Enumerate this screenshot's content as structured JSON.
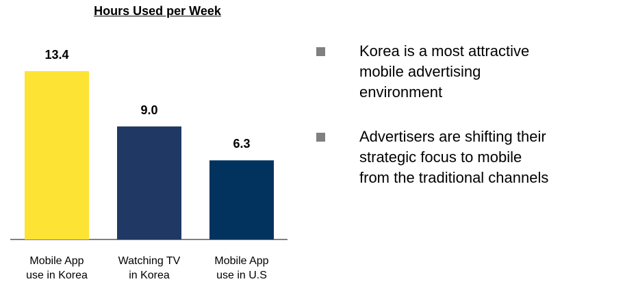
{
  "chart_data": {
    "type": "bar",
    "title": "Hours Used per Week",
    "categories": [
      "Mobile App\nuse in Korea",
      "Watching TV\nin Korea",
      "Mobile App\nuse in U.S"
    ],
    "values": [
      13.4,
      9.0,
      6.3
    ],
    "value_labels": [
      "13.4",
      "9.0",
      "6.3"
    ],
    "colors": [
      "#fde333",
      "#203864",
      "#02335f"
    ]
  },
  "bullets": [
    "Korea is a most attractive\nmobile advertising\nenvironment",
    "Advertisers are shifting their\nstrategic focus to mobile\nfrom the traditional channels"
  ]
}
